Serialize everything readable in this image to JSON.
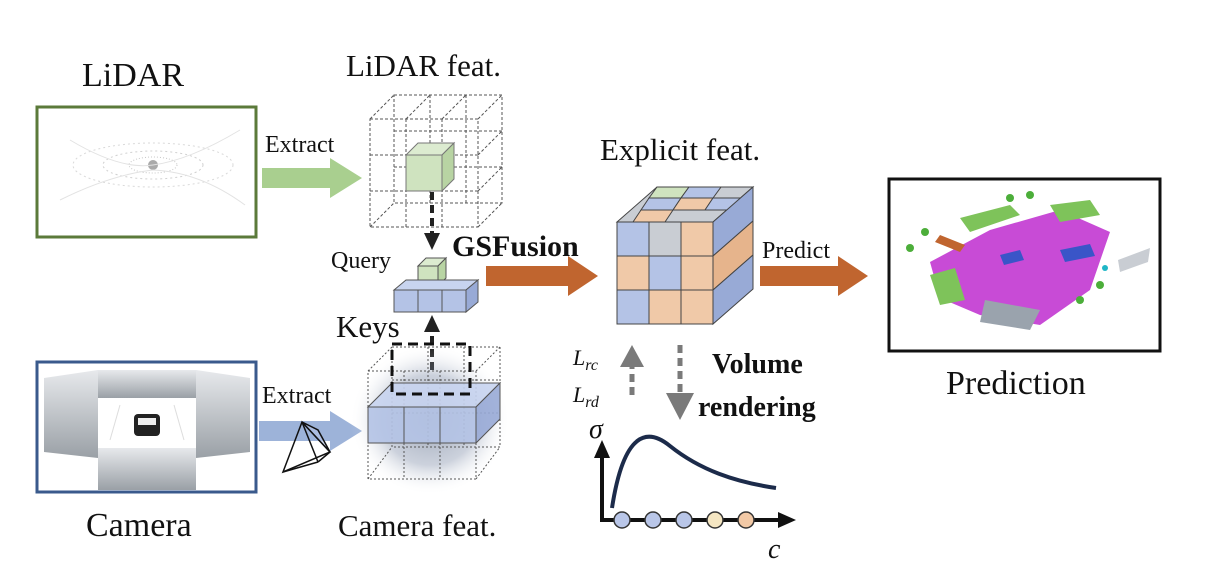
{
  "labels": {
    "lidar": "LiDAR",
    "lidar_feat": "LiDAR feat.",
    "extract_top": "Extract",
    "explicit_feat": "Explicit feat.",
    "query": "Query",
    "gsfusion": "GSFusion",
    "predict": "Predict",
    "keys": "Keys",
    "extract_bottom": "Extract",
    "camera": "Camera",
    "camera_feat": "Camera feat.",
    "prediction": "Prediction",
    "volume": "Volume",
    "rendering": "rendering",
    "sigma": "σ",
    "c_axis": "c",
    "loss_rc_main": "L",
    "loss_rc_sub": "rc",
    "loss_rd_main": "L",
    "loss_rd_sub": "rd"
  },
  "colors": {
    "lidar_frame": "#5b7a3a",
    "camera_frame": "#3a5a8c",
    "green_arrow": "#a9cf8f",
    "blue_arrow": "#9db3d9",
    "orange_arrow": "#c0652f",
    "gray_arrow": "#7a7a7a",
    "curve": "#1c2b4a",
    "cube_blue": "#b4c3e6",
    "cube_orange": "#f0c9a8",
    "cube_green": "#cfe3bf",
    "cube_gray": "#c9cdd3"
  },
  "curve_samples": {
    "colors": [
      "#b9c6e8",
      "#b9c6e8",
      "#b9c6e8",
      "#f5e6c2",
      "#f2c9a6"
    ]
  }
}
